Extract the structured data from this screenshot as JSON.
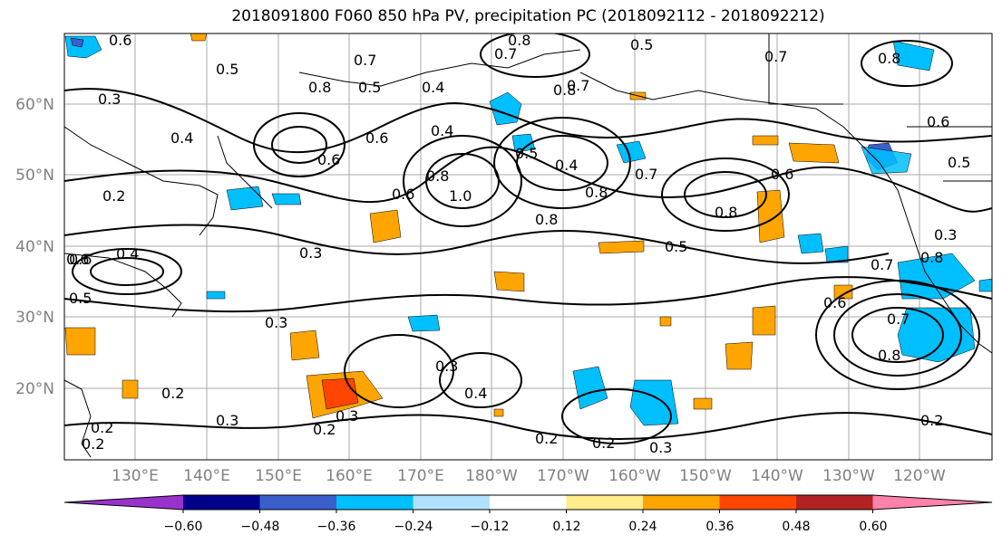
{
  "title": "2018091800 F060 850 hPa PV, precipitation PC (2018092112 - 2018092212)",
  "lat_labels": [
    "60°N",
    "50°N",
    "40°N",
    "30°N",
    "20°N"
  ],
  "lon_labels": [
    "130°E",
    "140°E",
    "150°E",
    "160°E",
    "170°E",
    "180°W",
    "170°W",
    "160°W",
    "150°W",
    "140°W",
    "130°W",
    "120°W"
  ],
  "colorbar": {
    "ticks": [
      "−0.60",
      "−0.48",
      "−0.36",
      "−0.24",
      "−0.12",
      "0.12",
      "0.24",
      "0.36",
      "0.48",
      "0.60"
    ],
    "colors": [
      "#9932cc",
      "#00008b",
      "#3a5fcd",
      "#00bfff",
      "#b0e2ff",
      "#ffffff",
      "#ffec8b",
      "#ffa500",
      "#ff4500",
      "#b22222",
      "#ff82ab"
    ]
  },
  "contour_labels": [
    "0.6",
    "0.5",
    "0.8",
    "0.7",
    "0.5",
    "0.7",
    "0.8",
    "0.5",
    "0.8",
    "0.6",
    "0.4",
    "0.8",
    "0.7",
    "0.6",
    "0.4",
    "0.3",
    "0.6",
    "0.4",
    "0.5",
    "0.7",
    "0.4",
    "0.5",
    "0.8",
    "0.6",
    "0.6",
    "1.0",
    "0.8",
    "0.8",
    "0.7",
    "0.6",
    "0.8",
    "0.8",
    "0.5",
    "0.2",
    "0.3",
    "0.4",
    "0.6",
    "0.5",
    "0.7",
    "0.3",
    "0.3",
    "0.3",
    "0.7",
    "0.6",
    "0.8",
    "0.3",
    "0.4",
    "0.2",
    "0.3",
    "0.2",
    "0.2",
    "0.2",
    "0.3",
    "0.2",
    "0.2",
    "0.2"
  ]
}
